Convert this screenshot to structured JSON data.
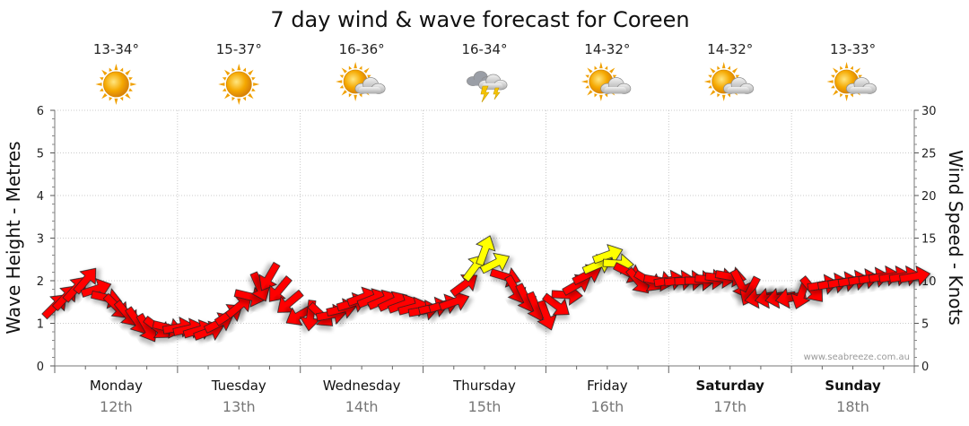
{
  "chart_data": {
    "type": "line",
    "title": "7 day wind & wave forecast for Coreen",
    "ylabel_left": "Wave Height - Metres",
    "ylabel_right": "Wind Speed - Knots",
    "ylim_left": [
      0,
      6
    ],
    "ylim_right": [
      0,
      30
    ],
    "yticks_left": [
      "0",
      "1",
      "2",
      "3",
      "4",
      "5",
      "6"
    ],
    "yticks_right": [
      "0",
      "5",
      "10",
      "15",
      "20",
      "25",
      "30"
    ],
    "days": [
      {
        "name": "Monday",
        "date": "12th",
        "temp": "13-34°",
        "icon": "sunny-icon",
        "bold": false
      },
      {
        "name": "Tuesday",
        "date": "13th",
        "temp": "15-37°",
        "icon": "sunny-icon",
        "bold": false
      },
      {
        "name": "Wednesday",
        "date": "14th",
        "temp": "16-36°",
        "icon": "partly-cloudy-icon",
        "bold": false
      },
      {
        "name": "Thursday",
        "date": "15th",
        "temp": "16-34°",
        "icon": "thunderstorm-icon",
        "bold": false
      },
      {
        "name": "Friday",
        "date": "16th",
        "temp": "14-32°",
        "icon": "partly-cloudy-icon",
        "bold": false
      },
      {
        "name": "Saturday",
        "date": "17th",
        "temp": "14-32°",
        "icon": "partly-cloudy-icon",
        "bold": true
      },
      {
        "name": "Sunday",
        "date": "18th",
        "temp": "13-33°",
        "icon": "partly-cloudy-icon",
        "bold": true
      }
    ],
    "wind_series": {
      "x_days": [
        0.0,
        0.25,
        0.5,
        0.75,
        1.0,
        1.25,
        1.5,
        1.75,
        2.0,
        2.25,
        2.5,
        2.75,
        3.0,
        3.25,
        3.5,
        3.75,
        4.0,
        4.25,
        4.5,
        4.75,
        5.0,
        5.25,
        5.5,
        5.75,
        6.0,
        6.25,
        6.5,
        6.75,
        7.0
      ],
      "knots": [
        7.0,
        10.0,
        7.0,
        4.5,
        4.5,
        4.0,
        7.0,
        10.5,
        6.0,
        6.0,
        8.0,
        7.5,
        6.5,
        7.5,
        13.5,
        9.0,
        6.0,
        9.5,
        13.0,
        10.0,
        10.0,
        10.0,
        10.5,
        8.0,
        8.0,
        9.5,
        10.0,
        10.5,
        10.5
      ],
      "direction_deg": [
        45,
        40,
        135,
        150,
        80,
        70,
        50,
        210,
        240,
        80,
        70,
        65,
        80,
        70,
        20,
        150,
        160,
        60,
        70,
        140,
        80,
        90,
        100,
        260,
        260,
        80,
        80,
        80,
        80
      ],
      "strong": [
        false,
        false,
        false,
        false,
        false,
        false,
        false,
        false,
        false,
        false,
        false,
        false,
        false,
        false,
        true,
        false,
        false,
        false,
        true,
        false,
        false,
        false,
        false,
        false,
        false,
        false,
        false,
        false,
        false
      ]
    },
    "credit": "www.seabreeze.com.au"
  }
}
